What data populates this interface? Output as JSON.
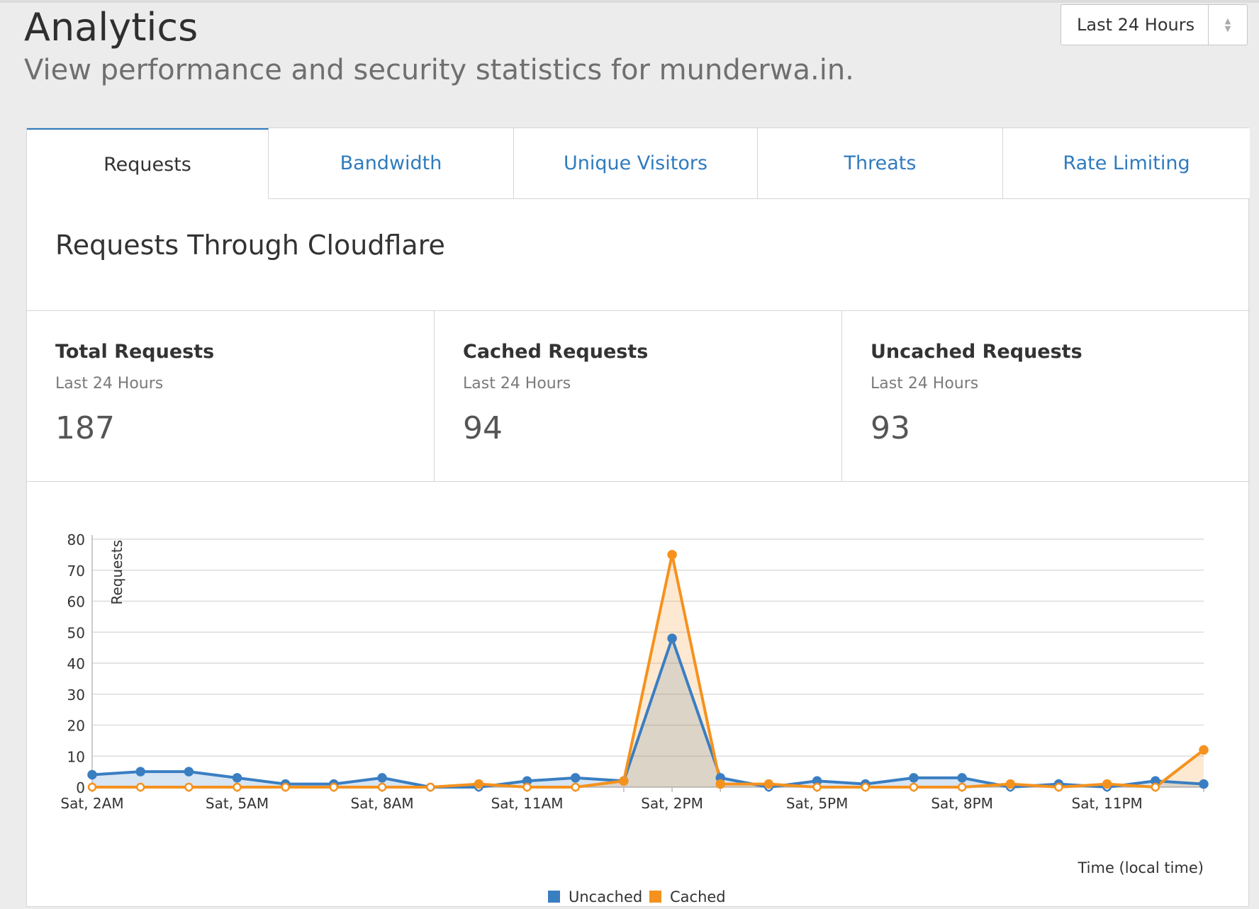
{
  "header": {
    "title": "Analytics",
    "subtitle": "View performance and security statistics for munderwa.in."
  },
  "range_select": {
    "value": "Last 24 Hours"
  },
  "tabs": [
    {
      "label": "Requests",
      "active": true
    },
    {
      "label": "Bandwidth",
      "active": false
    },
    {
      "label": "Unique Visitors",
      "active": false
    },
    {
      "label": "Threats",
      "active": false
    },
    {
      "label": "Rate Limiting",
      "active": false
    }
  ],
  "section": {
    "title": "Requests Through Cloudflare"
  },
  "stats": [
    {
      "title": "Total Requests",
      "period": "Last 24 Hours",
      "value": "187"
    },
    {
      "title": "Cached Requests",
      "period": "Last 24 Hours",
      "value": "94"
    },
    {
      "title": "Uncached Requests",
      "period": "Last 24 Hours",
      "value": "93"
    }
  ],
  "colors": {
    "uncached": "#3a7ec2",
    "cached": "#f5921e",
    "tab_link": "#2f7bbf"
  },
  "chart_data": {
    "type": "area",
    "ylabel": "Requests",
    "xlabel": "Time (local time)",
    "ylim": [
      0,
      80
    ],
    "yticks": [
      0,
      10,
      20,
      30,
      40,
      50,
      60,
      70,
      80
    ],
    "x": [
      "Sat, 2AM",
      "Sat, 3AM",
      "Sat, 4AM",
      "Sat, 5AM",
      "Sat, 6AM",
      "Sat, 7AM",
      "Sat, 8AM",
      "Sat, 9AM",
      "Sat, 10AM",
      "Sat, 11AM",
      "Sat, 12PM",
      "Sat, 1PM",
      "Sat, 2PM",
      "Sat, 3PM",
      "Sat, 4PM",
      "Sat, 5PM",
      "Sat, 6PM",
      "Sat, 7PM",
      "Sat, 8PM",
      "Sat, 9PM",
      "Sat, 10PM",
      "Sat, 11PM",
      "Sun, 12AM",
      "Sun, 1AM"
    ],
    "xtick_labels": [
      "Sat, 2AM",
      "Sat, 5AM",
      "Sat, 8AM",
      "Sat, 11AM",
      "Sat, 2PM",
      "Sat, 5PM",
      "Sat, 8PM",
      "Sat, 11PM"
    ],
    "grid": true,
    "legend_position": "bottom-center",
    "series": [
      {
        "name": "Uncached",
        "color": "#3a7ec2",
        "values": [
          4,
          5,
          5,
          3,
          1,
          1,
          3,
          0,
          0,
          2,
          3,
          2,
          48,
          3,
          0,
          2,
          1,
          3,
          3,
          0,
          1,
          0,
          2,
          1
        ]
      },
      {
        "name": "Cached",
        "color": "#f5921e",
        "values": [
          0,
          0,
          0,
          0,
          0,
          0,
          0,
          0,
          1,
          0,
          0,
          2,
          75,
          1,
          1,
          0,
          0,
          0,
          0,
          1,
          0,
          1,
          0,
          12
        ]
      }
    ]
  }
}
